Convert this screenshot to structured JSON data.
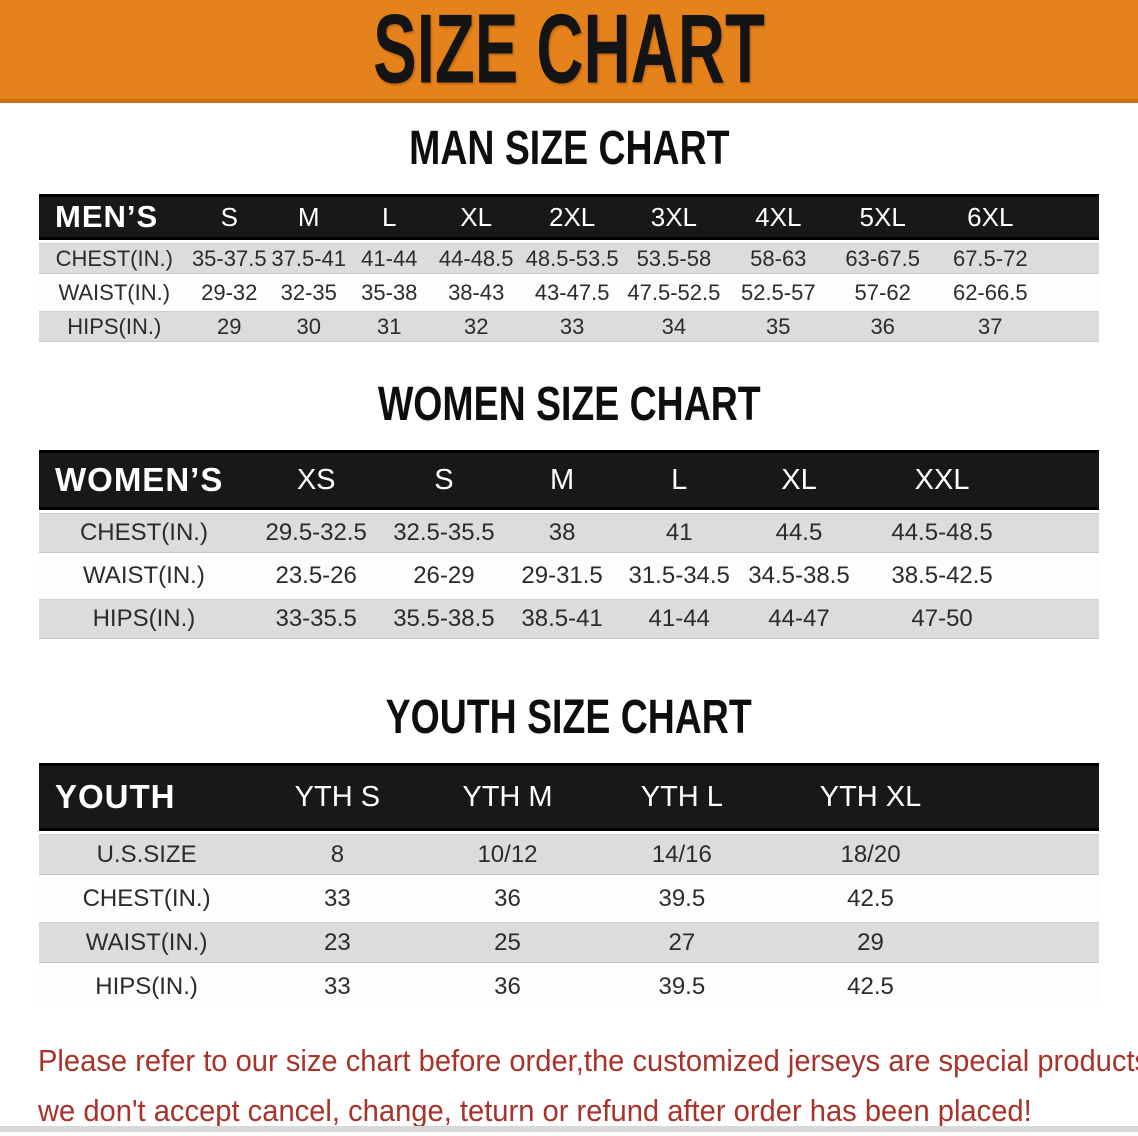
{
  "banner": {
    "title": "SIZE CHART",
    "bg_color": "#e6821b",
    "text_color": "#141414"
  },
  "sections": [
    {
      "heading": "MAN SIZE CHART",
      "label": "MEN’S",
      "columns": [
        "S",
        "M",
        "L",
        "XL",
        "2XL",
        "3XL",
        "4XL",
        "5XL",
        "6XL"
      ],
      "rows": [
        {
          "label": "CHEST(IN.)",
          "values": [
            "35-37.5",
            "37.5-41",
            "41-44",
            "44-48.5",
            "48.5-53.5",
            "53.5-58",
            "58-63",
            "63-67.5",
            "67.5-72"
          ]
        },
        {
          "label": "WAIST(IN.)",
          "values": [
            "29-32",
            "32-35",
            "35-38",
            "38-43",
            "43-47.5",
            "47.5-52.5",
            "52.5-57",
            "57-62",
            "62-66.5"
          ]
        },
        {
          "label": "HIPS(IN.)",
          "values": [
            "29",
            "30",
            "31",
            "32",
            "33",
            "34",
            "35",
            "36",
            "37"
          ]
        }
      ]
    },
    {
      "heading": "WOMEN SIZE CHART",
      "label": "WOMEN’S",
      "columns": [
        "XS",
        "S",
        "M",
        "L",
        "XL",
        "XXL"
      ],
      "rows": [
        {
          "label": "CHEST(IN.)",
          "values": [
            "29.5-32.5",
            "32.5-35.5",
            "38",
            "41",
            "44.5",
            "44.5-48.5"
          ]
        },
        {
          "label": "WAIST(IN.)",
          "values": [
            "23.5-26",
            "26-29",
            "29-31.5",
            "31.5-34.5",
            "34.5-38.5",
            "38.5-42.5"
          ]
        },
        {
          "label": "HIPS(IN.)",
          "values": [
            "33-35.5",
            "35.5-38.5",
            "38.5-41",
            "41-44",
            "44-47",
            "47-50"
          ]
        }
      ]
    },
    {
      "heading": "YOUTH SIZE CHART",
      "label": "YOUTH",
      "columns": [
        "YTH S",
        "YTH M",
        "YTH L",
        "YTH XL"
      ],
      "rows": [
        {
          "label": "U.S.SIZE",
          "values": [
            "8",
            "10/12",
            "14/16",
            "18/20"
          ]
        },
        {
          "label": "CHEST(IN.)",
          "values": [
            "33",
            "36",
            "39.5",
            "42.5"
          ]
        },
        {
          "label": "WAIST(IN.)",
          "values": [
            "23",
            "25",
            "27",
            "29"
          ]
        },
        {
          "label": "HIPS(IN.)",
          "values": [
            "33",
            "36",
            "39.5",
            "42.5"
          ]
        }
      ]
    }
  ],
  "disclaimer": {
    "line1": "Please refer to our size chart before order,the customized jerseys are special products,",
    "line2": "we don't accept cancel, change, teturn or refund after order has been placed!",
    "text_color": "#a8332a"
  }
}
